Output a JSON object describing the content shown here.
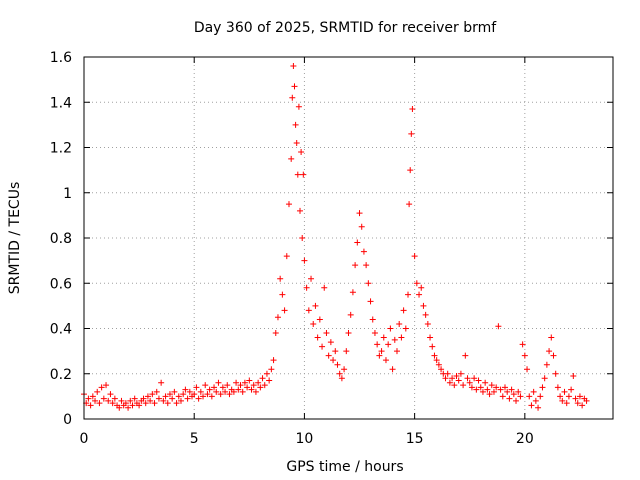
{
  "chart_data": {
    "type": "scatter",
    "title": "Day 360 of 2025, SRMTID for receiver brmf",
    "xlabel": "GPS time / hours",
    "ylabel": "SRMTID / TECUs",
    "xlim": [
      0,
      24
    ],
    "ylim": [
      0,
      1.6
    ],
    "xticks": [
      0,
      5,
      10,
      15,
      20
    ],
    "xtick_labels": [
      "0",
      "5",
      "10",
      "15",
      "20"
    ],
    "yticks": [
      0,
      0.2,
      0.4,
      0.6,
      0.8,
      1.0,
      1.2,
      1.4,
      1.6
    ],
    "ytick_labels": [
      "0",
      "0.2",
      "0.4",
      "0.6",
      "0.8",
      "1",
      "1.2",
      "1.4",
      "1.6"
    ],
    "grid": true,
    "marker": "+",
    "color": "#ff0000",
    "series": [
      {
        "name": "brmf",
        "points": [
          [
            0.0,
            0.11
          ],
          [
            0.1,
            0.07
          ],
          [
            0.2,
            0.09
          ],
          [
            0.3,
            0.06
          ],
          [
            0.4,
            0.1
          ],
          [
            0.5,
            0.08
          ],
          [
            0.6,
            0.12
          ],
          [
            0.7,
            0.07
          ],
          [
            0.8,
            0.14
          ],
          [
            0.9,
            0.09
          ],
          [
            1.0,
            0.15
          ],
          [
            1.1,
            0.08
          ],
          [
            1.2,
            0.11
          ],
          [
            1.3,
            0.07
          ],
          [
            1.4,
            0.09
          ],
          [
            1.5,
            0.06
          ],
          [
            1.6,
            0.05
          ],
          [
            1.7,
            0.08
          ],
          [
            1.8,
            0.06
          ],
          [
            1.9,
            0.07
          ],
          [
            2.0,
            0.05
          ],
          [
            2.1,
            0.08
          ],
          [
            2.2,
            0.06
          ],
          [
            2.3,
            0.09
          ],
          [
            2.4,
            0.07
          ],
          [
            2.5,
            0.06
          ],
          [
            2.6,
            0.08
          ],
          [
            2.7,
            0.09
          ],
          [
            2.8,
            0.07
          ],
          [
            2.9,
            0.1
          ],
          [
            3.0,
            0.08
          ],
          [
            3.1,
            0.11
          ],
          [
            3.2,
            0.07
          ],
          [
            3.3,
            0.12
          ],
          [
            3.4,
            0.09
          ],
          [
            3.5,
            0.16
          ],
          [
            3.6,
            0.08
          ],
          [
            3.7,
            0.1
          ],
          [
            3.8,
            0.07
          ],
          [
            3.9,
            0.11
          ],
          [
            4.0,
            0.09
          ],
          [
            4.1,
            0.12
          ],
          [
            4.2,
            0.07
          ],
          [
            4.3,
            0.1
          ],
          [
            4.4,
            0.08
          ],
          [
            4.5,
            0.11
          ],
          [
            4.6,
            0.13
          ],
          [
            4.7,
            0.09
          ],
          [
            4.8,
            0.12
          ],
          [
            4.9,
            0.1
          ],
          [
            5.0,
            0.11
          ],
          [
            5.1,
            0.14
          ],
          [
            5.2,
            0.09
          ],
          [
            5.3,
            0.12
          ],
          [
            5.4,
            0.1
          ],
          [
            5.5,
            0.15
          ],
          [
            5.6,
            0.11
          ],
          [
            5.7,
            0.13
          ],
          [
            5.8,
            0.1
          ],
          [
            5.9,
            0.14
          ],
          [
            6.0,
            0.12
          ],
          [
            6.1,
            0.16
          ],
          [
            6.2,
            0.11
          ],
          [
            6.3,
            0.14
          ],
          [
            6.4,
            0.12
          ],
          [
            6.5,
            0.15
          ],
          [
            6.6,
            0.11
          ],
          [
            6.7,
            0.13
          ],
          [
            6.8,
            0.12
          ],
          [
            6.9,
            0.16
          ],
          [
            7.0,
            0.13
          ],
          [
            7.1,
            0.15
          ],
          [
            7.2,
            0.12
          ],
          [
            7.3,
            0.16
          ],
          [
            7.4,
            0.14
          ],
          [
            7.5,
            0.17
          ],
          [
            7.6,
            0.13
          ],
          [
            7.7,
            0.15
          ],
          [
            7.8,
            0.12
          ],
          [
            7.9,
            0.16
          ],
          [
            8.0,
            0.14
          ],
          [
            8.1,
            0.18
          ],
          [
            8.2,
            0.15
          ],
          [
            8.3,
            0.2
          ],
          [
            8.4,
            0.17
          ],
          [
            8.5,
            0.22
          ],
          [
            8.6,
            0.26
          ],
          [
            8.7,
            0.38
          ],
          [
            8.8,
            0.45
          ],
          [
            8.9,
            0.62
          ],
          [
            9.0,
            0.55
          ],
          [
            9.1,
            0.48
          ],
          [
            9.2,
            0.72
          ],
          [
            9.3,
            0.95
          ],
          [
            9.4,
            1.15
          ],
          [
            9.45,
            1.42
          ],
          [
            9.5,
            1.56
          ],
          [
            9.55,
            1.47
          ],
          [
            9.6,
            1.3
          ],
          [
            9.65,
            1.22
          ],
          [
            9.7,
            1.08
          ],
          [
            9.75,
            1.38
          ],
          [
            9.8,
            0.92
          ],
          [
            9.85,
            1.18
          ],
          [
            9.9,
            0.8
          ],
          [
            9.95,
            1.08
          ],
          [
            10.0,
            0.7
          ],
          [
            10.1,
            0.58
          ],
          [
            10.2,
            0.48
          ],
          [
            10.3,
            0.62
          ],
          [
            10.4,
            0.42
          ],
          [
            10.5,
            0.5
          ],
          [
            10.6,
            0.36
          ],
          [
            10.7,
            0.44
          ],
          [
            10.8,
            0.32
          ],
          [
            10.9,
            0.58
          ],
          [
            11.0,
            0.38
          ],
          [
            11.1,
            0.28
          ],
          [
            11.2,
            0.34
          ],
          [
            11.3,
            0.26
          ],
          [
            11.4,
            0.3
          ],
          [
            11.5,
            0.24
          ],
          [
            11.6,
            0.2
          ],
          [
            11.7,
            0.18
          ],
          [
            11.8,
            0.22
          ],
          [
            11.9,
            0.3
          ],
          [
            12.0,
            0.38
          ],
          [
            12.1,
            0.46
          ],
          [
            12.2,
            0.56
          ],
          [
            12.3,
            0.68
          ],
          [
            12.4,
            0.78
          ],
          [
            12.5,
            0.91
          ],
          [
            12.6,
            0.85
          ],
          [
            12.7,
            0.74
          ],
          [
            12.8,
            0.68
          ],
          [
            12.9,
            0.6
          ],
          [
            13.0,
            0.52
          ],
          [
            13.1,
            0.44
          ],
          [
            13.2,
            0.38
          ],
          [
            13.3,
            0.33
          ],
          [
            13.4,
            0.28
          ],
          [
            13.5,
            0.3
          ],
          [
            13.6,
            0.36
          ],
          [
            13.7,
            0.26
          ],
          [
            13.8,
            0.33
          ],
          [
            13.9,
            0.4
          ],
          [
            14.0,
            0.22
          ],
          [
            14.1,
            0.35
          ],
          [
            14.2,
            0.3
          ],
          [
            14.3,
            0.42
          ],
          [
            14.4,
            0.36
          ],
          [
            14.5,
            0.48
          ],
          [
            14.6,
            0.4
          ],
          [
            14.7,
            0.55
          ],
          [
            14.75,
            0.95
          ],
          [
            14.8,
            1.1
          ],
          [
            14.85,
            1.26
          ],
          [
            14.9,
            1.37
          ],
          [
            15.0,
            0.72
          ],
          [
            15.1,
            0.6
          ],
          [
            15.2,
            0.55
          ],
          [
            15.3,
            0.58
          ],
          [
            15.4,
            0.5
          ],
          [
            15.5,
            0.46
          ],
          [
            15.6,
            0.42
          ],
          [
            15.7,
            0.36
          ],
          [
            15.8,
            0.32
          ],
          [
            15.9,
            0.28
          ],
          [
            16.0,
            0.26
          ],
          [
            16.1,
            0.24
          ],
          [
            16.2,
            0.22
          ],
          [
            16.3,
            0.2
          ],
          [
            16.4,
            0.18
          ],
          [
            16.5,
            0.2
          ],
          [
            16.6,
            0.16
          ],
          [
            16.7,
            0.18
          ],
          [
            16.8,
            0.15
          ],
          [
            16.9,
            0.19
          ],
          [
            17.0,
            0.17
          ],
          [
            17.1,
            0.2
          ],
          [
            17.2,
            0.15
          ],
          [
            17.3,
            0.28
          ],
          [
            17.4,
            0.18
          ],
          [
            17.5,
            0.16
          ],
          [
            17.6,
            0.14
          ],
          [
            17.7,
            0.18
          ],
          [
            17.8,
            0.13
          ],
          [
            17.9,
            0.17
          ],
          [
            18.0,
            0.14
          ],
          [
            18.1,
            0.12
          ],
          [
            18.2,
            0.16
          ],
          [
            18.3,
            0.13
          ],
          [
            18.4,
            0.11
          ],
          [
            18.5,
            0.15
          ],
          [
            18.6,
            0.12
          ],
          [
            18.7,
            0.14
          ],
          [
            18.8,
            0.41
          ],
          [
            18.9,
            0.13
          ],
          [
            19.0,
            0.1
          ],
          [
            19.1,
            0.14
          ],
          [
            19.2,
            0.12
          ],
          [
            19.3,
            0.09
          ],
          [
            19.4,
            0.13
          ],
          [
            19.5,
            0.11
          ],
          [
            19.6,
            0.08
          ],
          [
            19.7,
            0.12
          ],
          [
            19.8,
            0.1
          ],
          [
            19.9,
            0.33
          ],
          [
            20.0,
            0.28
          ],
          [
            20.1,
            0.22
          ],
          [
            20.2,
            0.1
          ],
          [
            20.3,
            0.06
          ],
          [
            20.4,
            0.12
          ],
          [
            20.5,
            0.08
          ],
          [
            20.6,
            0.05
          ],
          [
            20.7,
            0.1
          ],
          [
            20.8,
            0.14
          ],
          [
            20.9,
            0.18
          ],
          [
            21.0,
            0.24
          ],
          [
            21.1,
            0.3
          ],
          [
            21.2,
            0.36
          ],
          [
            21.3,
            0.28
          ],
          [
            21.4,
            0.2
          ],
          [
            21.5,
            0.14
          ],
          [
            21.6,
            0.1
          ],
          [
            21.7,
            0.08
          ],
          [
            21.8,
            0.12
          ],
          [
            21.9,
            0.07
          ],
          [
            22.0,
            0.1
          ],
          [
            22.1,
            0.13
          ],
          [
            22.2,
            0.19
          ],
          [
            22.3,
            0.09
          ],
          [
            22.4,
            0.07
          ],
          [
            22.5,
            0.1
          ],
          [
            22.6,
            0.06
          ],
          [
            22.7,
            0.09
          ],
          [
            22.8,
            0.08
          ]
        ]
      }
    ]
  }
}
